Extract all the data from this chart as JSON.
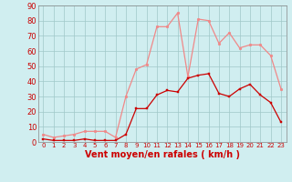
{
  "x": [
    0,
    1,
    2,
    3,
    4,
    5,
    6,
    7,
    8,
    9,
    10,
    11,
    12,
    13,
    14,
    15,
    16,
    17,
    18,
    19,
    20,
    21,
    22,
    23
  ],
  "rafales": [
    5,
    3,
    4,
    5,
    7,
    7,
    7,
    3,
    30,
    48,
    51,
    76,
    76,
    85,
    43,
    81,
    80,
    65,
    72,
    62,
    64,
    64,
    57,
    35
  ],
  "moyen": [
    2,
    1,
    1,
    1,
    2,
    1,
    1,
    1,
    5,
    22,
    22,
    31,
    34,
    33,
    42,
    44,
    45,
    32,
    30,
    35,
    38,
    31,
    26,
    13
  ],
  "bg_color": "#d0eef0",
  "grid_color": "#a0c8c8",
  "line_color_rafales": "#f08888",
  "line_color_moyen": "#cc0000",
  "marker_color_rafales": "#f08888",
  "marker_color_moyen": "#cc0000",
  "xlabel": "Vent moyen/en rafales ( km/h )",
  "ylim": [
    0,
    90
  ],
  "yticks": [
    0,
    10,
    20,
    30,
    40,
    50,
    60,
    70,
    80,
    90
  ],
  "xlabel_color": "#cc0000",
  "tick_color": "#cc0000",
  "xlabel_fontsize": 7,
  "ytick_fontsize": 6,
  "xtick_fontsize": 5
}
